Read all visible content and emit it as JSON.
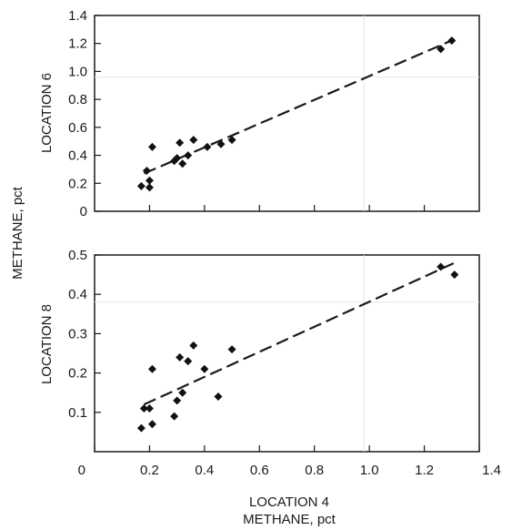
{
  "chart_data": [
    {
      "type": "scatter",
      "ylabel": "LOCATION 6",
      "xlim": [
        0,
        1.4
      ],
      "ylim": [
        0,
        1.4
      ],
      "y_ticks": [
        "0",
        "0.2",
        "0.4",
        "0.6",
        "0.8",
        "1.0",
        "1.2",
        "1.4"
      ],
      "y_tick_values": [
        0,
        0.2,
        0.4,
        0.6,
        0.8,
        1.0,
        1.2,
        1.4
      ],
      "grid": "faint",
      "trendline": {
        "x": [
          0.18,
          1.31
        ],
        "y": [
          0.27,
          1.23
        ],
        "style": "dashed"
      },
      "points": [
        {
          "x": 0.17,
          "y": 0.18
        },
        {
          "x": 0.19,
          "y": 0.29
        },
        {
          "x": 0.2,
          "y": 0.22
        },
        {
          "x": 0.2,
          "y": 0.17
        },
        {
          "x": 0.21,
          "y": 0.46
        },
        {
          "x": 0.29,
          "y": 0.36
        },
        {
          "x": 0.3,
          "y": 0.38
        },
        {
          "x": 0.31,
          "y": 0.49
        },
        {
          "x": 0.32,
          "y": 0.34
        },
        {
          "x": 0.34,
          "y": 0.4
        },
        {
          "x": 0.36,
          "y": 0.51
        },
        {
          "x": 0.41,
          "y": 0.46
        },
        {
          "x": 0.46,
          "y": 0.48
        },
        {
          "x": 0.5,
          "y": 0.51
        },
        {
          "x": 1.26,
          "y": 1.16
        },
        {
          "x": 1.3,
          "y": 1.22
        }
      ]
    },
    {
      "type": "scatter",
      "ylabel": "LOCATION 8",
      "xlabel": "LOCATION 4",
      "xlim": [
        0,
        1.4
      ],
      "ylim": [
        0,
        0.5
      ],
      "x_ticks": [
        "0",
        "0.2",
        "0.4",
        "0.6",
        "0.8",
        "1.0",
        "1.2",
        "1.4"
      ],
      "x_tick_values": [
        0,
        0.2,
        0.4,
        0.6,
        0.8,
        1.0,
        1.2,
        1.4
      ],
      "y_ticks": [
        "0.1",
        "0.2",
        "0.3",
        "0.4",
        "0.5"
      ],
      "y_tick_values": [
        0.1,
        0.2,
        0.3,
        0.4,
        0.5
      ],
      "grid": "faint",
      "trendline": {
        "x": [
          0.18,
          1.31
        ],
        "y": [
          0.12,
          0.48
        ],
        "style": "dashed"
      },
      "points": [
        {
          "x": 0.17,
          "y": 0.06
        },
        {
          "x": 0.18,
          "y": 0.11
        },
        {
          "x": 0.2,
          "y": 0.11
        },
        {
          "x": 0.21,
          "y": 0.21
        },
        {
          "x": 0.21,
          "y": 0.07
        },
        {
          "x": 0.29,
          "y": 0.09
        },
        {
          "x": 0.3,
          "y": 0.13
        },
        {
          "x": 0.31,
          "y": 0.24
        },
        {
          "x": 0.32,
          "y": 0.15
        },
        {
          "x": 0.34,
          "y": 0.23
        },
        {
          "x": 0.36,
          "y": 0.27
        },
        {
          "x": 0.4,
          "y": 0.21
        },
        {
          "x": 0.45,
          "y": 0.14
        },
        {
          "x": 0.5,
          "y": 0.26
        },
        {
          "x": 1.26,
          "y": 0.47
        },
        {
          "x": 1.31,
          "y": 0.45
        }
      ]
    }
  ],
  "shared_ylabel": "METHANE, pct",
  "shared_xlabel": "METHANE, pct"
}
